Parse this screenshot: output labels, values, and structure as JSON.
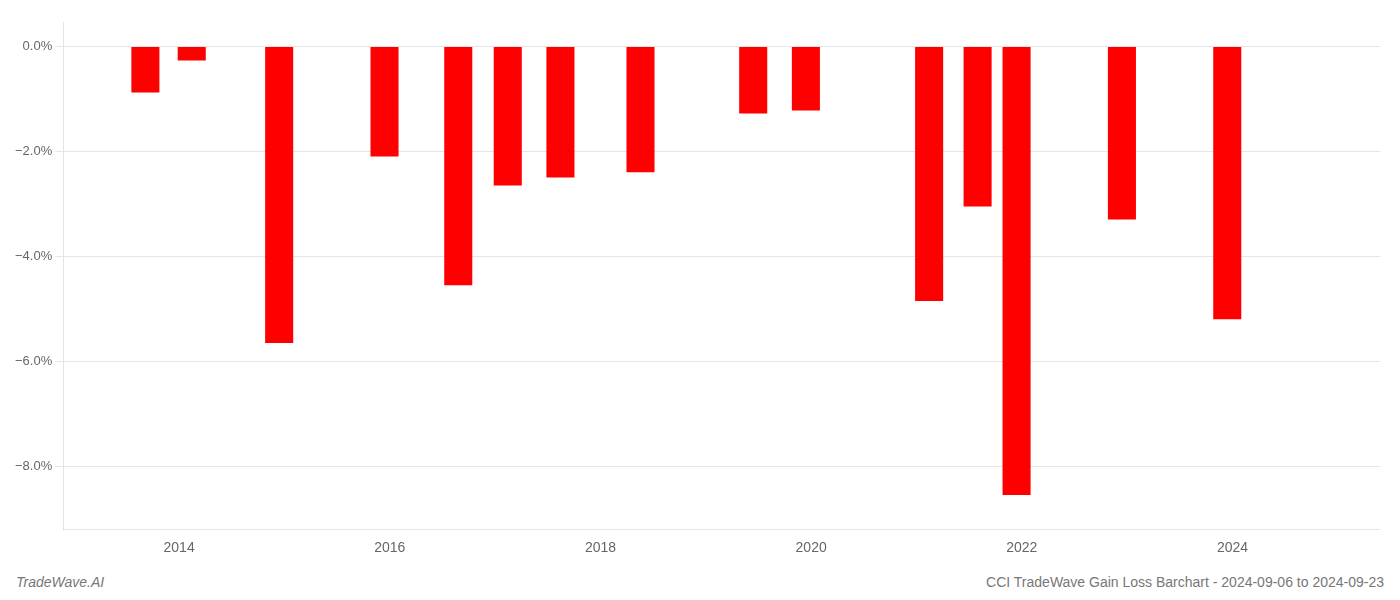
{
  "chart_data": {
    "type": "bar",
    "x": [
      2013.68,
      2014.12,
      2014.95,
      2015.95,
      2016.65,
      2017.12,
      2017.62,
      2018.38,
      2019.45,
      2019.95,
      2021.12,
      2021.58,
      2021.95,
      2022.95,
      2023.95
    ],
    "values": [
      -0.88,
      -0.27,
      -5.65,
      -2.1,
      -4.55,
      -2.65,
      -2.5,
      -2.4,
      -1.28,
      -1.22,
      -4.85,
      -3.05,
      -8.55,
      -3.3,
      -5.2
    ],
    "color": "#ff0000",
    "xlim": [
      2012.9,
      2025.4
    ],
    "xticks": [
      2014,
      2016,
      2018,
      2020,
      2022,
      2024
    ],
    "ylim": [
      -9.2,
      0.45
    ],
    "yticks": [
      {
        "value": 0.0,
        "label": "0.0%"
      },
      {
        "value": -2.0,
        "label": "−2.0%"
      },
      {
        "value": -4.0,
        "label": "−4.0%"
      },
      {
        "value": -6.0,
        "label": "−6.0%"
      },
      {
        "value": -8.0,
        "label": "−8.0%"
      }
    ],
    "grid": "y",
    "annotations": [
      "TradeWave.AI",
      "CCI TradeWave Gain Loss Barchart - 2024-09-06 to 2024-09-23"
    ]
  }
}
